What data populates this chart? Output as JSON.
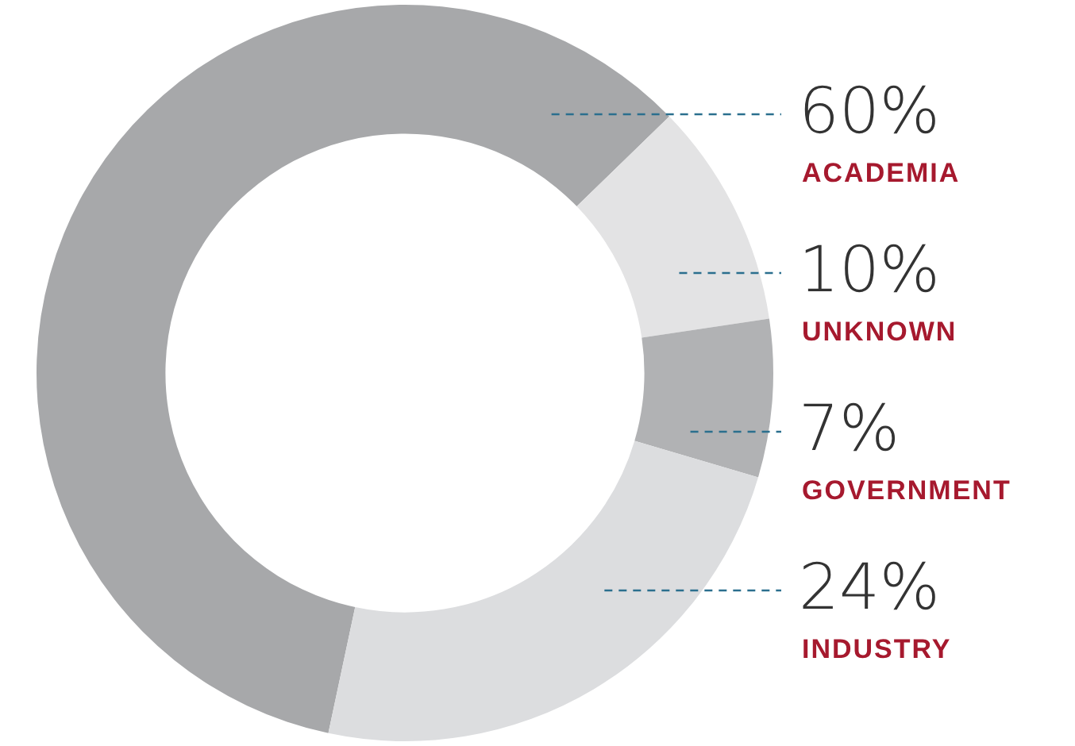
{
  "chart_data": {
    "type": "donut",
    "categories": [
      "ACADEMIA",
      "UNKNOWN",
      "GOVERNMENT",
      "INDUSTRY"
    ],
    "values": [
      60,
      10,
      7,
      24
    ],
    "value_labels": [
      "60%",
      "10%",
      "7%",
      "24%"
    ],
    "colors": [
      "#a7a8aa",
      "#e3e3e4",
      "#b1b2b4",
      "#dcdddf"
    ],
    "legend": false
  }
}
